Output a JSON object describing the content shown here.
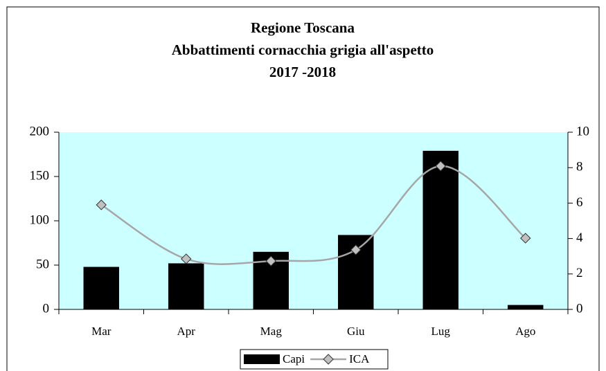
{
  "chart_data": {
    "type": "bar-line",
    "title": [
      "Regione Toscana",
      "Abbattimenti cornacchia grigia all'aspetto",
      "2017 -2018"
    ],
    "categories": [
      "Mar",
      "Apr",
      "Mag",
      "Giu",
      "Lug",
      "Ago"
    ],
    "series": [
      {
        "name": "Capi",
        "type": "bar",
        "color": "#000000",
        "values": [
          48,
          52,
          65,
          84,
          179,
          5
        ]
      },
      {
        "name": "ICA",
        "type": "line",
        "axis": "y2",
        "color": "#a6a6a6",
        "marker_color": "#c0c0c0",
        "smooth": true,
        "values": [
          5.9,
          2.85,
          2.73,
          3.36,
          8.09,
          4.02
        ]
      }
    ],
    "ylim": [
      0,
      200
    ],
    "yticks": [
      0,
      50,
      100,
      150,
      200
    ],
    "y2lim": [
      0,
      10
    ],
    "y2ticks": [
      0,
      2,
      4,
      6,
      8,
      10
    ],
    "plot_background": "#ccffff",
    "legend": "bottom"
  }
}
